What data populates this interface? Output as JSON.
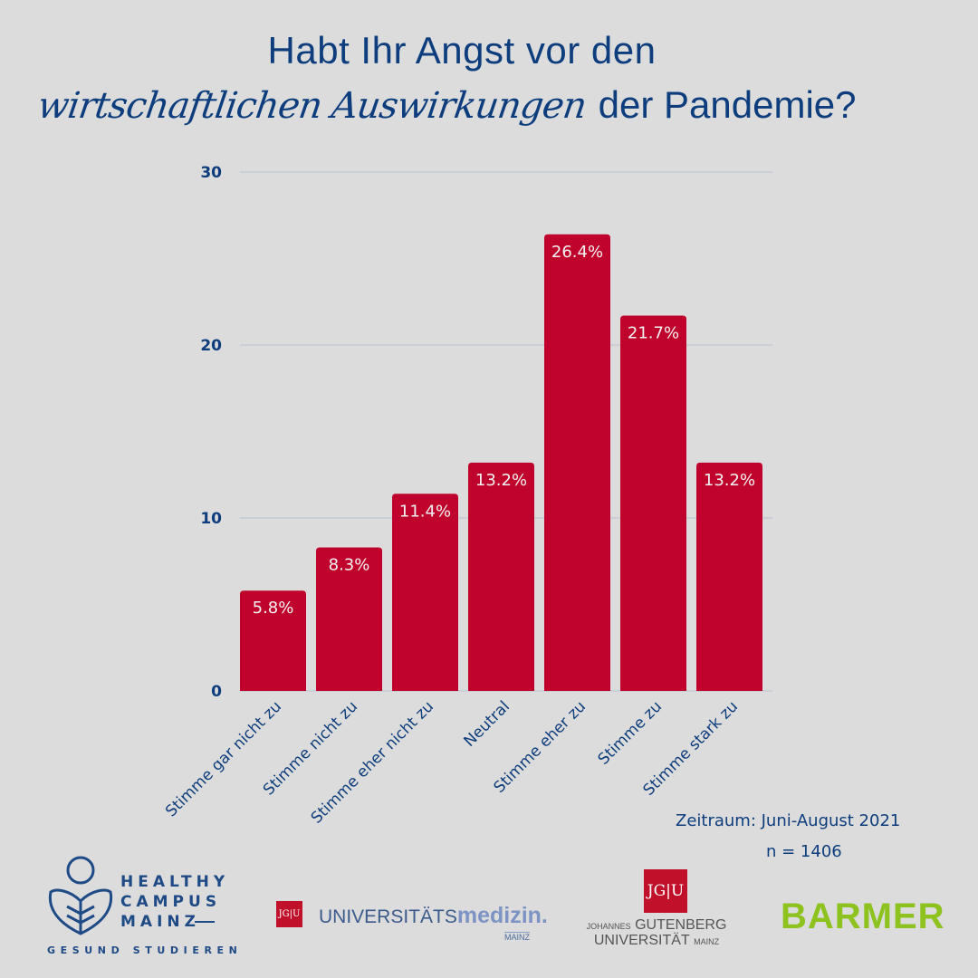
{
  "title": {
    "line1": "Habt Ihr Angst vor den",
    "line2_script": "wirtschaftlichen Auswirkungen",
    "line2_rest": "der Pandemie?"
  },
  "colors": {
    "bar": "#c0032c",
    "text": "#0d3d7d",
    "grid": "#c3cad4",
    "background": "#dcdcdc",
    "barmer_green": "#8dc21f",
    "jgu_red": "#c0102a"
  },
  "chart_data": {
    "type": "bar",
    "title": "Habt Ihr Angst vor den wirtschaftlichen Auswirkungen der Pandemie?",
    "xlabel": "",
    "ylabel": "",
    "categories": [
      "Stimme gar nicht zu",
      "Stimme nicht zu",
      "Stimme eher nicht zu",
      "Neutral",
      "Stimme eher zu",
      "Stimme zu",
      "Stimme stark zu"
    ],
    "values": [
      5.8,
      8.3,
      11.4,
      13.2,
      26.4,
      21.7,
      13.2
    ],
    "value_labels": [
      "5.8%",
      "8.3%",
      "11.4%",
      "13.2%",
      "26.4%",
      "21.7%",
      "13.2%"
    ],
    "ylim": [
      0,
      30
    ],
    "yticks": [
      0,
      10,
      20,
      30
    ],
    "ytick_labels": [
      "0",
      "10",
      "20",
      "30"
    ],
    "grid": true,
    "legend": "none"
  },
  "notes": {
    "period": "Zeitraum: Juni-August 2021",
    "sample": "n = 1406"
  },
  "logos": {
    "healthy_campus": {
      "lines": [
        "HEALTHY",
        "CAMPUS",
        "MAINZ"
      ],
      "subtitle": "GESUND STUDIEREN"
    },
    "jgu_mark": "JG|U",
    "unimedizin": {
      "part1": "UNIVERSITÄTS",
      "part2": "medizin.",
      "sub": "MAINZ"
    },
    "jgu": {
      "line1_small": "JOHANNES",
      "line1": "GUTENBERG",
      "line2": "UNIVERSITÄT",
      "line2_small": "MAINZ"
    },
    "barmer": "BARMER"
  }
}
